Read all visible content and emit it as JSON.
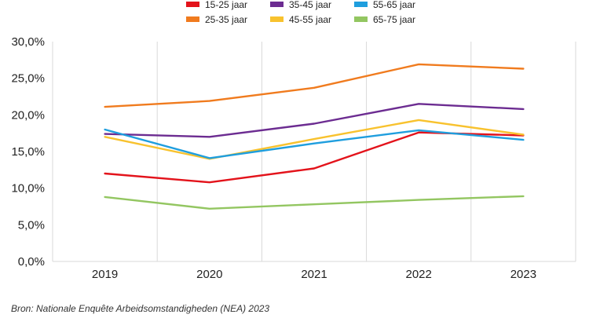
{
  "chart_data": {
    "type": "line",
    "title": "",
    "xlabel": "",
    "ylabel": "",
    "x": [
      "2019",
      "2020",
      "2021",
      "2022",
      "2023"
    ],
    "ylim": [
      0,
      30
    ],
    "yticks": [
      "0,0%",
      "5,0%",
      "10,0%",
      "15,0%",
      "20,0%",
      "25,0%",
      "30,0%"
    ],
    "grid": "vertical",
    "legend": "top-center",
    "series": [
      {
        "name": "15-25 jaar",
        "color": "#e3131b",
        "values": [
          12.0,
          10.8,
          12.7,
          17.6,
          17.2
        ]
      },
      {
        "name": "25-35 jaar",
        "color": "#f07b1e",
        "values": [
          21.1,
          21.9,
          23.7,
          26.9,
          26.3
        ]
      },
      {
        "name": "35-45 jaar",
        "color": "#6c2c91",
        "values": [
          17.4,
          17.0,
          18.8,
          21.5,
          20.8
        ]
      },
      {
        "name": "45-55 jaar",
        "color": "#f8c22e",
        "values": [
          17.0,
          14.0,
          16.7,
          19.3,
          17.3
        ]
      },
      {
        "name": "55-65 jaar",
        "color": "#1f9ede",
        "values": [
          18.0,
          14.1,
          16.1,
          17.9,
          16.6
        ]
      },
      {
        "name": "65-75 jaar",
        "color": "#93c661",
        "values": [
          8.8,
          7.2,
          7.8,
          8.4,
          8.9
        ]
      }
    ]
  },
  "source": "Bron: Nationale Enquête Arbeidsomstandigheden (NEA) 2023"
}
